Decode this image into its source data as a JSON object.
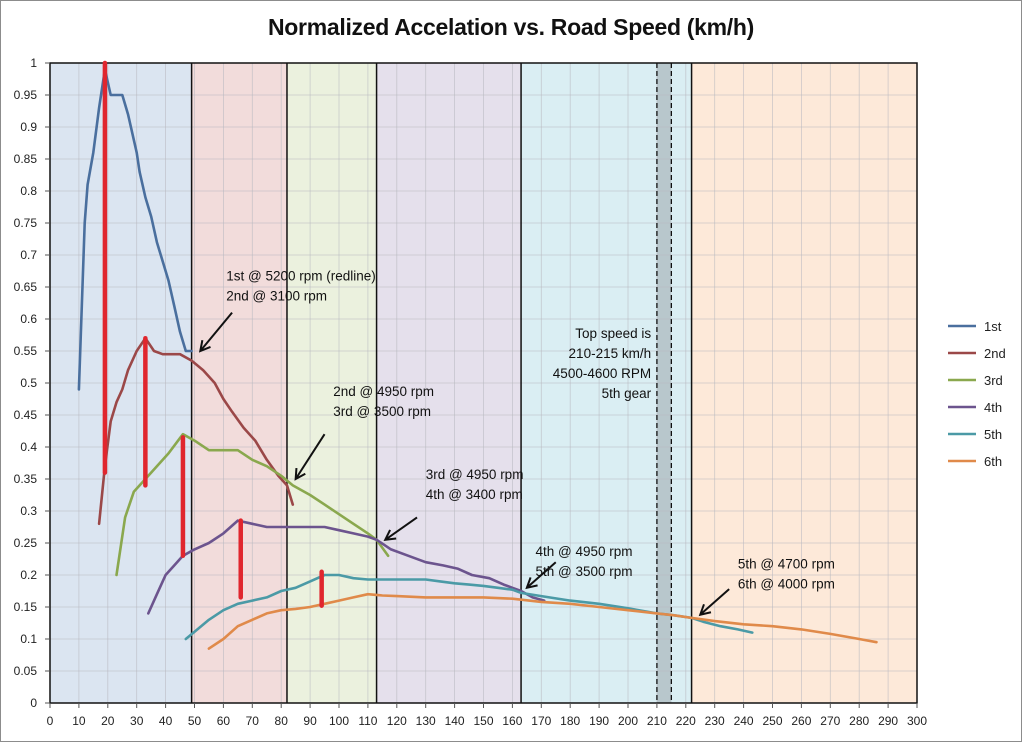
{
  "chart_data": {
    "type": "line",
    "title": "Normalized Accelation vs. Road Speed (km/h)",
    "xlabel": "",
    "ylabel": "",
    "xlim": [
      0,
      300
    ],
    "ylim": [
      0,
      1
    ],
    "x_ticks": [
      0,
      10,
      20,
      30,
      40,
      50,
      60,
      70,
      80,
      90,
      100,
      110,
      120,
      130,
      140,
      150,
      160,
      170,
      180,
      190,
      200,
      210,
      220,
      230,
      240,
      250,
      260,
      270,
      280,
      290,
      300
    ],
    "y_ticks": [
      0,
      0.05,
      0.1,
      0.15,
      0.2,
      0.25,
      0.3,
      0.35,
      0.4,
      0.45,
      0.5,
      0.55,
      0.6,
      0.65,
      0.7,
      0.75,
      0.8,
      0.85,
      0.9,
      0.95,
      1
    ],
    "y_tick_labels": [
      "0",
      "0.05",
      "0.1",
      "0.15",
      "0.2",
      "0.25",
      "0.3",
      "0.35",
      "0.4",
      "0.45",
      "0.5",
      "0.55",
      "0.6",
      "0.65",
      "0.7",
      "0.75",
      "0.8",
      "0.85",
      "0.9",
      "0.95",
      "1"
    ],
    "grid": true,
    "legend_position": "right",
    "series": [
      {
        "name": "1st",
        "color": "#4a6f9e",
        "points": [
          [
            10,
            0.49
          ],
          [
            12,
            0.75
          ],
          [
            13,
            0.81
          ],
          [
            15,
            0.86
          ],
          [
            17,
            0.93
          ],
          [
            19,
            0.99
          ],
          [
            21,
            0.95
          ],
          [
            23,
            0.95
          ],
          [
            25,
            0.95
          ],
          [
            27,
            0.92
          ],
          [
            29,
            0.88
          ],
          [
            30,
            0.86
          ],
          [
            31,
            0.83
          ],
          [
            33,
            0.79
          ],
          [
            35,
            0.76
          ],
          [
            37,
            0.72
          ],
          [
            39,
            0.69
          ],
          [
            41,
            0.66
          ],
          [
            43,
            0.62
          ],
          [
            45,
            0.58
          ],
          [
            47,
            0.55
          ],
          [
            49,
            0.55
          ]
        ]
      },
      {
        "name": "2nd",
        "color": "#9b4848",
        "points": [
          [
            17,
            0.28
          ],
          [
            19,
            0.37
          ],
          [
            21,
            0.44
          ],
          [
            23,
            0.47
          ],
          [
            25,
            0.49
          ],
          [
            27,
            0.52
          ],
          [
            30,
            0.55
          ],
          [
            33,
            0.57
          ],
          [
            36,
            0.55
          ],
          [
            39,
            0.545
          ],
          [
            42,
            0.545
          ],
          [
            45,
            0.545
          ],
          [
            49,
            0.535
          ],
          [
            53,
            0.52
          ],
          [
            57,
            0.5
          ],
          [
            60,
            0.475
          ],
          [
            63,
            0.455
          ],
          [
            67,
            0.43
          ],
          [
            71,
            0.41
          ],
          [
            75,
            0.38
          ],
          [
            79,
            0.355
          ],
          [
            82,
            0.34
          ],
          [
            84,
            0.31
          ]
        ]
      },
      {
        "name": "3rd",
        "color": "#8aa84e",
        "points": [
          [
            23,
            0.2
          ],
          [
            26,
            0.29
          ],
          [
            29,
            0.33
          ],
          [
            33,
            0.35
          ],
          [
            37,
            0.37
          ],
          [
            41,
            0.39
          ],
          [
            46,
            0.42
          ],
          [
            50,
            0.41
          ],
          [
            55,
            0.395
          ],
          [
            60,
            0.395
          ],
          [
            65,
            0.395
          ],
          [
            70,
            0.38
          ],
          [
            75,
            0.37
          ],
          [
            80,
            0.355
          ],
          [
            84,
            0.34
          ],
          [
            90,
            0.325
          ],
          [
            95,
            0.31
          ],
          [
            100,
            0.295
          ],
          [
            105,
            0.28
          ],
          [
            110,
            0.265
          ],
          [
            113,
            0.255
          ],
          [
            117,
            0.23
          ]
        ]
      },
      {
        "name": "4th",
        "color": "#6c548e",
        "points": [
          [
            34,
            0.14
          ],
          [
            37,
            0.17
          ],
          [
            40,
            0.2
          ],
          [
            43,
            0.215
          ],
          [
            46,
            0.23
          ],
          [
            50,
            0.24
          ],
          [
            55,
            0.25
          ],
          [
            60,
            0.265
          ],
          [
            65,
            0.285
          ],
          [
            70,
            0.28
          ],
          [
            75,
            0.275
          ],
          [
            80,
            0.275
          ],
          [
            85,
            0.275
          ],
          [
            90,
            0.275
          ],
          [
            95,
            0.275
          ],
          [
            100,
            0.27
          ],
          [
            105,
            0.265
          ],
          [
            110,
            0.26
          ],
          [
            113,
            0.255
          ],
          [
            118,
            0.24
          ],
          [
            124,
            0.23
          ],
          [
            130,
            0.22
          ],
          [
            136,
            0.215
          ],
          [
            141,
            0.21
          ],
          [
            146,
            0.2
          ],
          [
            152,
            0.195
          ],
          [
            157,
            0.185
          ],
          [
            160,
            0.18
          ],
          [
            163,
            0.175
          ],
          [
            167,
            0.165
          ],
          [
            171,
            0.16
          ]
        ]
      },
      {
        "name": "5th",
        "color": "#4b9aa6",
        "points": [
          [
            47,
            0.1
          ],
          [
            51,
            0.115
          ],
          [
            55,
            0.13
          ],
          [
            60,
            0.145
          ],
          [
            65,
            0.155
          ],
          [
            70,
            0.16
          ],
          [
            75,
            0.165
          ],
          [
            80,
            0.175
          ],
          [
            85,
            0.18
          ],
          [
            90,
            0.19
          ],
          [
            95,
            0.2
          ],
          [
            100,
            0.2
          ],
          [
            105,
            0.195
          ],
          [
            110,
            0.193
          ],
          [
            115,
            0.193
          ],
          [
            120,
            0.193
          ],
          [
            125,
            0.193
          ],
          [
            130,
            0.193
          ],
          [
            135,
            0.19
          ],
          [
            140,
            0.187
          ],
          [
            145,
            0.185
          ],
          [
            150,
            0.183
          ],
          [
            155,
            0.18
          ],
          [
            160,
            0.177
          ],
          [
            163,
            0.172
          ],
          [
            170,
            0.167
          ],
          [
            180,
            0.16
          ],
          [
            190,
            0.155
          ],
          [
            200,
            0.148
          ],
          [
            210,
            0.14
          ],
          [
            216,
            0.137
          ],
          [
            222,
            0.133
          ],
          [
            226,
            0.127
          ],
          [
            232,
            0.12
          ],
          [
            238,
            0.115
          ],
          [
            243,
            0.11
          ]
        ]
      },
      {
        "name": "6th",
        "color": "#e08a4a",
        "points": [
          [
            55,
            0.085
          ],
          [
            60,
            0.1
          ],
          [
            65,
            0.12
          ],
          [
            70,
            0.13
          ],
          [
            75,
            0.14
          ],
          [
            80,
            0.145
          ],
          [
            85,
            0.147
          ],
          [
            90,
            0.15
          ],
          [
            95,
            0.155
          ],
          [
            100,
            0.16
          ],
          [
            105,
            0.165
          ],
          [
            110,
            0.17
          ],
          [
            115,
            0.168
          ],
          [
            120,
            0.167
          ],
          [
            130,
            0.165
          ],
          [
            140,
            0.165
          ],
          [
            150,
            0.165
          ],
          [
            160,
            0.163
          ],
          [
            170,
            0.158
          ],
          [
            180,
            0.155
          ],
          [
            190,
            0.15
          ],
          [
            200,
            0.145
          ],
          [
            210,
            0.14
          ],
          [
            216,
            0.137
          ],
          [
            222,
            0.133
          ],
          [
            230,
            0.128
          ],
          [
            240,
            0.123
          ],
          [
            250,
            0.12
          ],
          [
            260,
            0.115
          ],
          [
            270,
            0.108
          ],
          [
            280,
            0.1
          ],
          [
            286,
            0.095
          ]
        ]
      }
    ],
    "shift_markers": [
      {
        "x": 19,
        "y_from": 0.36,
        "y_to": 1.0
      },
      {
        "x": 33,
        "y_from": 0.34,
        "y_to": 0.57
      },
      {
        "x": 46,
        "y_from": 0.23,
        "y_to": 0.415
      },
      {
        "x": 66,
        "y_from": 0.165,
        "y_to": 0.285
      },
      {
        "x": 94,
        "y_from": 0.152,
        "y_to": 0.205
      }
    ],
    "zones": [
      {
        "from": 0,
        "to": 49,
        "color": "#dbe5f1"
      },
      {
        "from": 49,
        "to": 82,
        "color": "#f2dcdb"
      },
      {
        "from": 82,
        "to": 113,
        "color": "#ebf1de"
      },
      {
        "from": 113,
        "to": 163,
        "color": "#e5e0ec"
      },
      {
        "from": 163,
        "to": 222,
        "color": "#daeef3"
      },
      {
        "from": 222,
        "to": 300,
        "color": "#fde9d9"
      }
    ],
    "top_speed_band": {
      "from": 210,
      "to": 215,
      "color": "#b8c7cc"
    },
    "annotations": [
      {
        "lines": [
          "1st @ 5200 rpm (redline)",
          "2nd @ 3100 rpm"
        ],
        "text_x": 61,
        "text_y": 0.66,
        "arrow_from": [
          63,
          0.61
        ],
        "arrow_to": [
          52,
          0.55
        ]
      },
      {
        "lines": [
          "2nd @ 4950 rpm",
          "3rd @ 3500 rpm"
        ],
        "text_x": 98,
        "text_y": 0.48,
        "arrow_from": [
          95,
          0.42
        ],
        "arrow_to": [
          85,
          0.35
        ]
      },
      {
        "lines": [
          "3rd @ 4950 rpm",
          "4th @ 3400 rpm"
        ],
        "text_x": 130,
        "text_y": 0.35,
        "arrow_from": [
          127,
          0.29
        ],
        "arrow_to": [
          116,
          0.255
        ]
      },
      {
        "lines": [
          "4th @ 4950 rpm",
          "5th @ 3500 rpm"
        ],
        "text_x": 168,
        "text_y": 0.23,
        "arrow_from": [
          175,
          0.22
        ],
        "arrow_to": [
          165,
          0.18
        ]
      },
      {
        "lines": [
          "5th @ 4700 rpm",
          "6th @ 4000 rpm"
        ],
        "text_x": 238,
        "text_y": 0.21,
        "arrow_from": [
          235,
          0.178
        ],
        "arrow_to": [
          225,
          0.138
        ]
      },
      {
        "lines": [
          "Top speed is",
          "210-215 km/h",
          "4500-4600 RPM",
          "5th gear"
        ],
        "align": "right",
        "text_x": 208,
        "text_y": 0.57
      }
    ]
  }
}
